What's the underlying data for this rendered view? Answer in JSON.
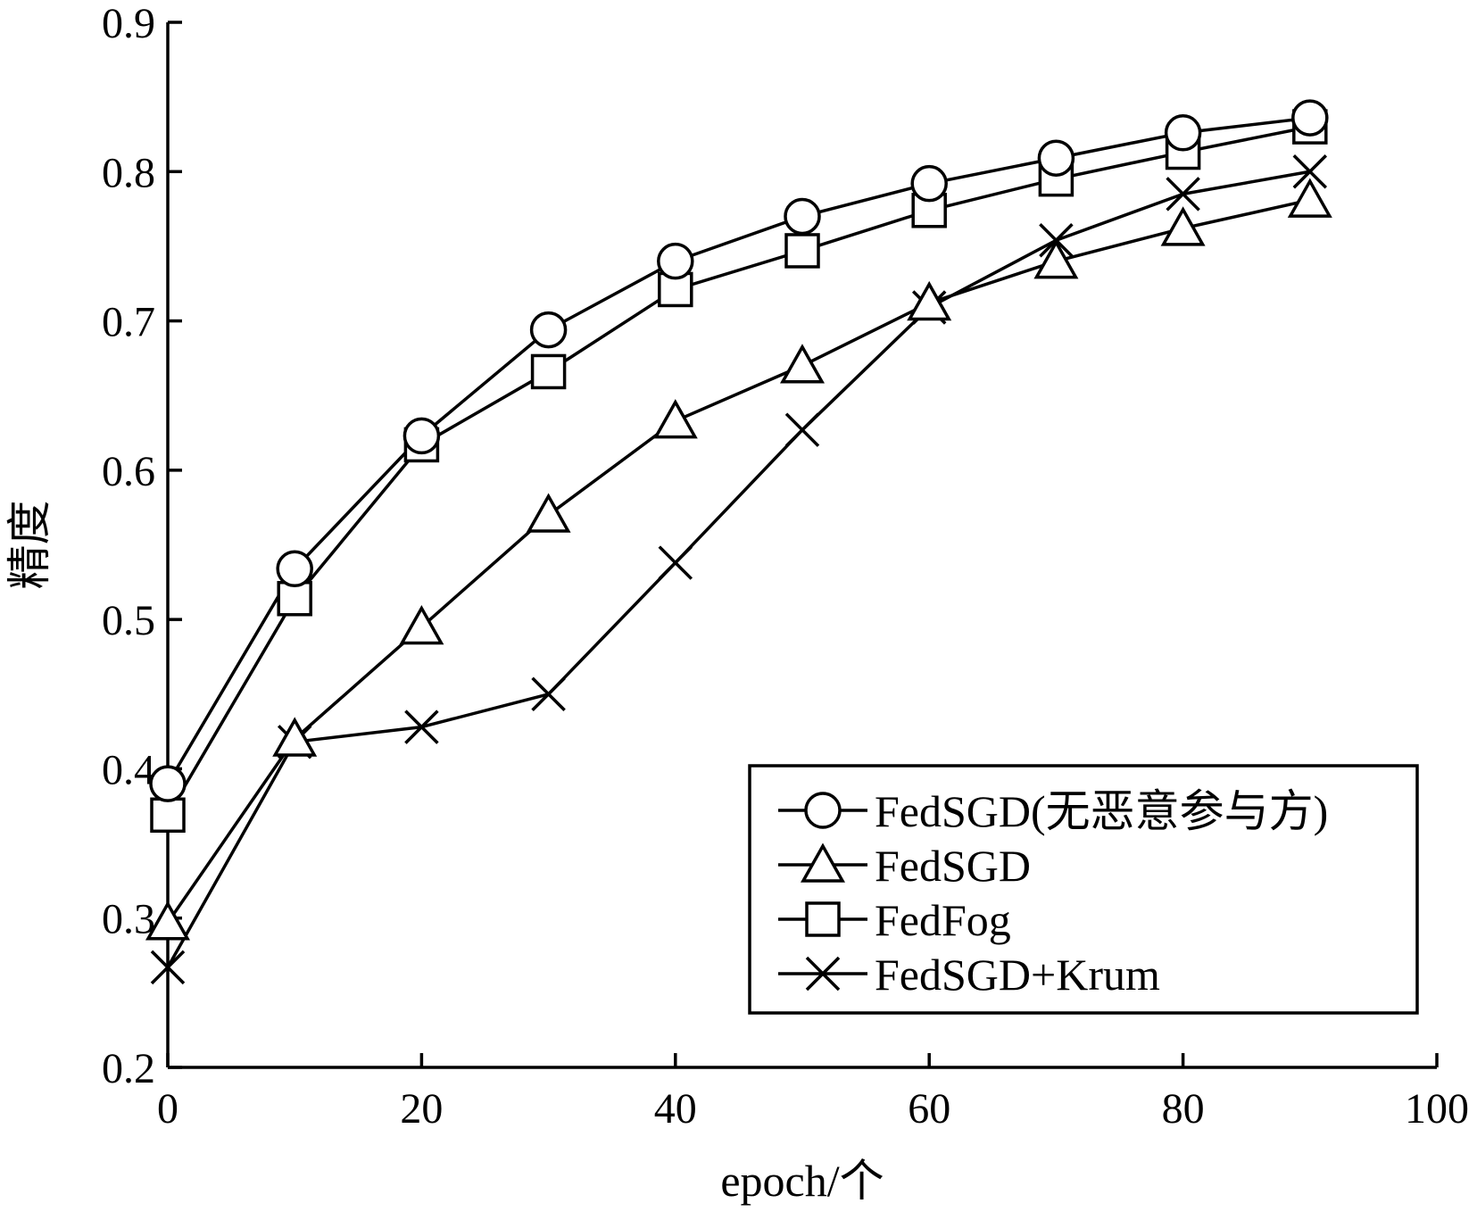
{
  "chart_data": {
    "type": "line",
    "xlabel": "epoch/个",
    "ylabel": "精度",
    "xlim": [
      0,
      100
    ],
    "ylim": [
      0.2,
      0.9
    ],
    "xticks": [
      0,
      20,
      40,
      60,
      80,
      100
    ],
    "xtick_labels": [
      "0",
      "20",
      "40",
      "60",
      "80",
      "100"
    ],
    "yticks": [
      0.2,
      0.3,
      0.4,
      0.5,
      0.6,
      0.7,
      0.8,
      0.9
    ],
    "ytick_labels": [
      "0.2",
      "0.3",
      "0.4",
      "0.5",
      "0.6",
      "0.7",
      "0.8",
      "0.9"
    ],
    "grid": false,
    "legend_position": "bottom-right",
    "x": [
      0,
      10,
      20,
      30,
      40,
      50,
      60,
      70,
      80,
      90
    ],
    "series": [
      {
        "name": "FedSGD(无恶意参与方)",
        "marker": "circle",
        "values": [
          0.39,
          0.534,
          0.623,
          0.694,
          0.74,
          0.77,
          0.792,
          0.809,
          0.826,
          0.836
        ]
      },
      {
        "name": "FedSGD",
        "marker": "triangle",
        "values": [
          0.297,
          0.42,
          0.495,
          0.57,
          0.633,
          0.67,
          0.712,
          0.74,
          0.762,
          0.781
        ]
      },
      {
        "name": "FedFog",
        "marker": "square",
        "values": [
          0.369,
          0.514,
          0.617,
          0.666,
          0.721,
          0.747,
          0.774,
          0.795,
          0.813,
          0.83
        ]
      },
      {
        "name": "FedSGD+Krum",
        "marker": "x",
        "values": [
          0.267,
          0.418,
          0.428,
          0.45,
          0.538,
          0.627,
          0.709,
          0.754,
          0.785,
          0.8
        ]
      }
    ]
  }
}
